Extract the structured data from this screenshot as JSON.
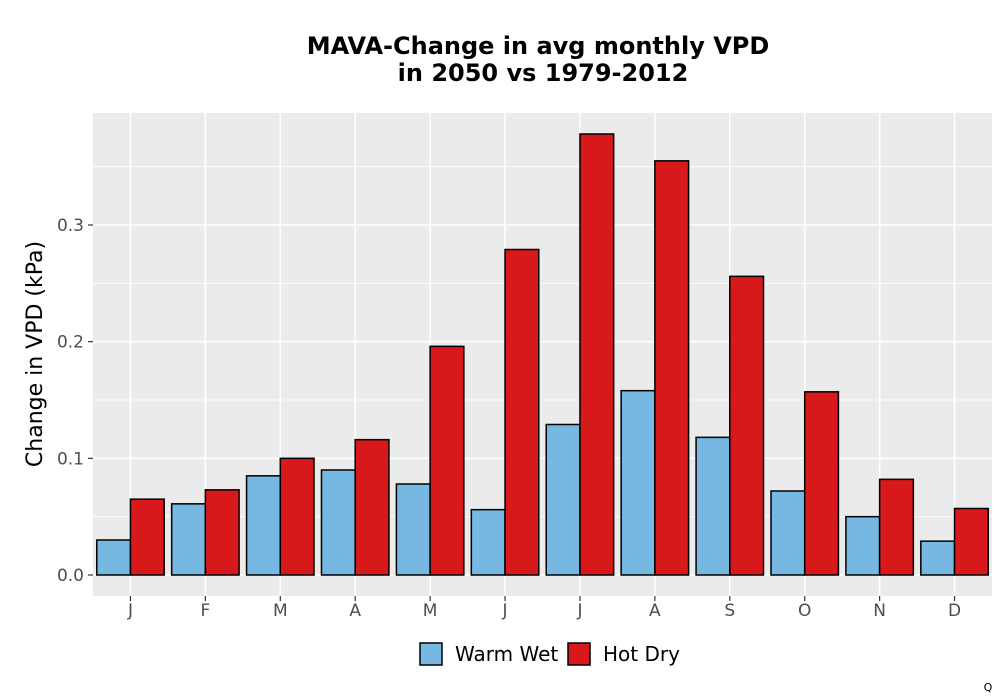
{
  "chart_data": {
    "type": "bar",
    "title_lines": [
      "MAVA-Change in avg monthly VPD",
      "in 2050 vs 1979-2012"
    ],
    "xlabel": "",
    "ylabel": "Change in VPD (kPa)",
    "categories": [
      "J",
      "F",
      "M",
      "A",
      "M",
      "J",
      "J",
      "A",
      "S",
      "O",
      "N",
      "D"
    ],
    "series": [
      {
        "name": "Warm Wet",
        "color": "#77b8e2",
        "values": [
          0.03,
          0.061,
          0.085,
          0.09,
          0.078,
          0.056,
          0.129,
          0.158,
          0.118,
          0.072,
          0.05,
          0.029
        ]
      },
      {
        "name": "Hot Dry",
        "color": "#d7191c",
        "values": [
          0.065,
          0.073,
          0.1,
          0.116,
          0.196,
          0.279,
          0.378,
          0.355,
          0.256,
          0.157,
          0.082,
          0.057
        ]
      }
    ],
    "yticks": [
      0.0,
      0.1,
      0.2,
      0.3
    ],
    "ytick_labels": [
      "0.0",
      "0.1",
      "0.2",
      "0.3"
    ],
    "ylim": [
      -0.018,
      0.396
    ],
    "grid": true,
    "panel_background": "#ebebeb",
    "legend_position": "bottom",
    "footer_mark": "Q"
  }
}
